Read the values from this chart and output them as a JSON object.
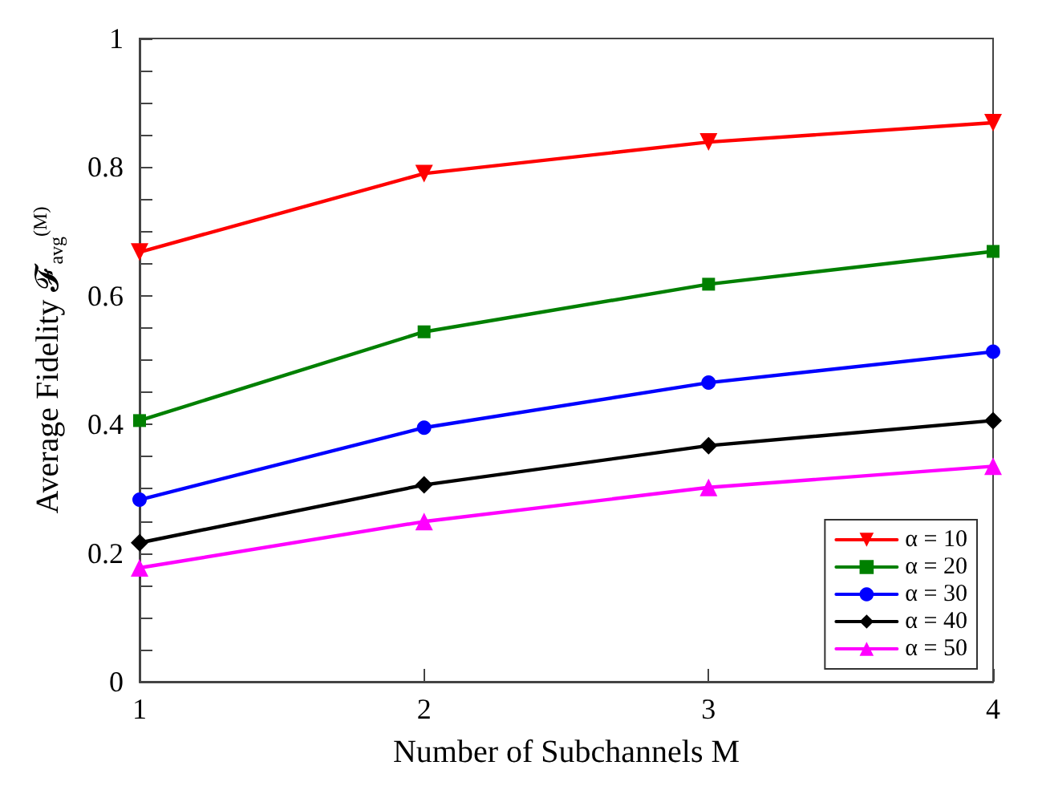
{
  "chart_data": {
    "type": "line",
    "xlabel": "Number of Subchannels M",
    "ylabel": "Average Fidelity 𝓕$_{avg}$$^{(M)}$",
    "x": [
      1,
      2,
      3,
      4
    ],
    "series": [
      {
        "name": "α = 10",
        "color": "#ff0000",
        "marker": "triangle",
        "values": [
          0.668,
          0.79,
          0.839,
          0.869
        ]
      },
      {
        "name": "α = 20",
        "color": "#008000",
        "marker": "square",
        "values": [
          0.406,
          0.544,
          0.618,
          0.669
        ]
      },
      {
        "name": "α = 30",
        "color": "#0000ff",
        "marker": "circle",
        "values": [
          0.283,
          0.395,
          0.465,
          0.513
        ]
      },
      {
        "name": "α = 40",
        "color": "#000000",
        "marker": "diamond",
        "values": [
          0.216,
          0.306,
          0.367,
          0.406
        ]
      },
      {
        "name": "α = 50",
        "color": "#ff00ff",
        "marker": "triangle",
        "values": [
          0.177,
          0.249,
          0.302,
          0.335
        ]
      }
    ],
    "xlim": [
      1,
      4
    ],
    "xticks": [
      1,
      2,
      3,
      4
    ],
    "ylim": [
      0,
      1
    ],
    "yticks": [
      0,
      {
        "value": 0.05,
        "label": null
      },
      {
        "value": 0.1,
        "label": null
      },
      {
        "value": 0.15,
        "label": null
      },
      0.2,
      {
        "value": 0.25,
        "label": null
      },
      {
        "value": 0.3,
        "label": null
      },
      {
        "value": 0.35,
        "label": null
      },
      0.4,
      {
        "value": 0.45,
        "label": null
      },
      {
        "value": 0.5,
        "label": null
      },
      {
        "value": 0.55,
        "label": null
      },
      0.6,
      {
        "value": 0.65,
        "label": null
      },
      {
        "value": 0.7,
        "label": null
      },
      {
        "value": 0.75,
        "label": null
      },
      0.8,
      {
        "value": 0.85,
        "label": null
      },
      {
        "value": 0.9,
        "label": null
      },
      {
        "value": 0.95,
        "label": null
      },
      1
    ],
    "grid": false,
    "legend": "bottom right",
    "line_style": "solid"
  }
}
